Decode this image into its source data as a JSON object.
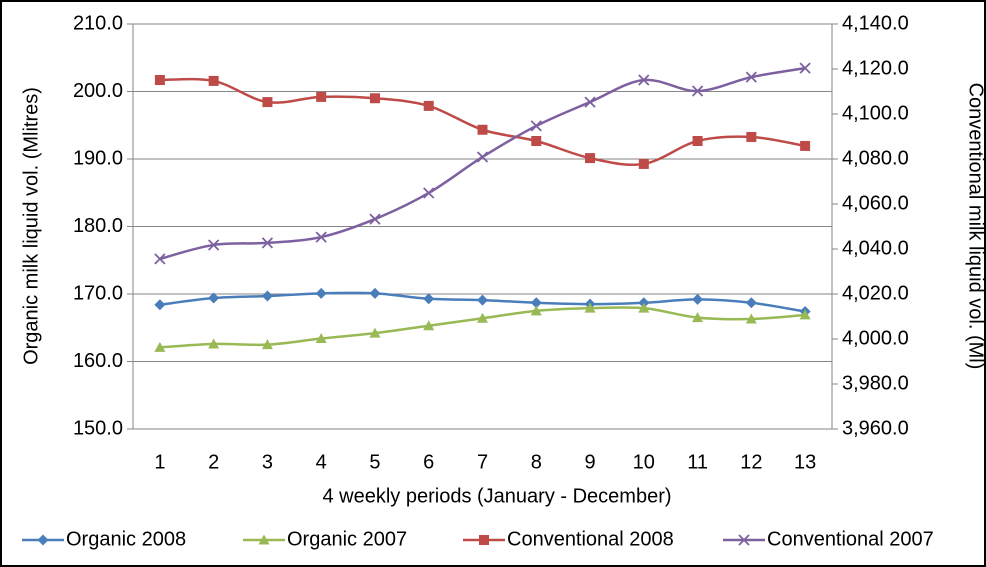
{
  "chart_data": {
    "type": "line",
    "x_label": "4 weekly periods (January - December)",
    "y_label": "Organic milk liquid vol. (Mlitres)",
    "y2_label": "Conventional milk liquid vol. (Ml)",
    "categories": [
      "1",
      "2",
      "3",
      "4",
      "5",
      "6",
      "7",
      "8",
      "9",
      "10",
      "11",
      "12",
      "13"
    ],
    "ylim": [
      150,
      210
    ],
    "yticks": [
      {
        "value": 150,
        "label": "150.0"
      },
      {
        "value": 160,
        "label": "160.0"
      },
      {
        "value": 170,
        "label": "170.0"
      },
      {
        "value": 180,
        "label": "180.0"
      },
      {
        "value": 190,
        "label": "190.0"
      },
      {
        "value": 200,
        "label": "200.0"
      },
      {
        "value": 210,
        "label": "210.0"
      }
    ],
    "y2lim": [
      3960,
      4140
    ],
    "y2ticks": [
      {
        "value": 3960,
        "label": "3,960.0"
      },
      {
        "value": 3980,
        "label": "3,980.0"
      },
      {
        "value": 4000,
        "label": "4,000.0"
      },
      {
        "value": 4020,
        "label": "4,020.0"
      },
      {
        "value": 4040,
        "label": "4,040.0"
      },
      {
        "value": 4060,
        "label": "4,060.0"
      },
      {
        "value": 4080,
        "label": "4,080.0"
      },
      {
        "value": 4100,
        "label": "4,100.0"
      },
      {
        "value": 4120,
        "label": "4,120.0"
      },
      {
        "value": 4140,
        "label": "4,140.0"
      }
    ],
    "grid": true,
    "legend": "bottom",
    "series": [
      {
        "name": "Organic 2008",
        "color": "#4a7ebb",
        "marker": "diamond",
        "values": [
          168.4,
          169.4,
          169.7,
          170.1,
          170.1,
          169.3,
          169.1,
          168.7,
          168.5,
          168.7,
          169.2,
          168.7,
          167.4
        ]
      },
      {
        "name": "Organic 2007",
        "color": "#98b954",
        "marker": "triangle",
        "values": [
          162.1,
          162.6,
          162.5,
          163.4,
          164.2,
          165.3,
          166.4,
          167.5,
          167.9,
          167.9,
          166.5,
          166.3,
          166.9
        ]
      },
      {
        "name": "Conventional 2008",
        "color": "#be4b48",
        "marker": "square",
        "axis": "y2",
        "values": [
          4115.1,
          4114.7,
          4105.3,
          4107.6,
          4107.0,
          4103.6,
          4093.0,
          4088.0,
          4080.4,
          4077.8,
          4088.0,
          4089.8,
          4085.8
        ]
      },
      {
        "name": "Conventional 2007",
        "color": "#7d60a0",
        "marker": "x",
        "axis": "y2",
        "values": [
          4035.6,
          4041.8,
          4042.7,
          4045.3,
          4053.3,
          4064.9,
          4080.9,
          4094.7,
          4105.3,
          4115.1,
          4110.2,
          4116.4,
          4120.4
        ]
      }
    ]
  }
}
